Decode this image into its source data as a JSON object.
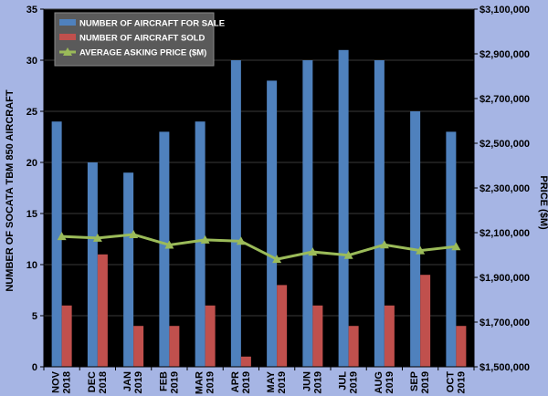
{
  "chart_data": {
    "type": "bar",
    "categories": [
      [
        "NOV",
        "2018"
      ],
      [
        "DEC",
        "2018"
      ],
      [
        "JAN",
        "2019"
      ],
      [
        "FEB",
        "2019"
      ],
      [
        "MAR",
        "2019"
      ],
      [
        "APR",
        "2019"
      ],
      [
        "MAY",
        "2019"
      ],
      [
        "JUN",
        "2019"
      ],
      [
        "JUL",
        "2019"
      ],
      [
        "AUG",
        "2019"
      ],
      [
        "SEP",
        "2019"
      ],
      [
        "OCT",
        "2019"
      ]
    ],
    "series": [
      {
        "name": "NUMBER OF AIRCRAFT FOR SALE",
        "type": "bar",
        "axis": "left",
        "color": "#4f81bd",
        "values": [
          24,
          20,
          19,
          23,
          24,
          30,
          28,
          30,
          31,
          30,
          25,
          23
        ]
      },
      {
        "name": "NUMBER OF AIRCRAFT SOLD",
        "type": "bar",
        "axis": "left",
        "color": "#c0504d",
        "values": [
          6,
          11,
          4,
          4,
          6,
          1,
          8,
          6,
          4,
          6,
          9,
          4
        ]
      },
      {
        "name": "AVERAGE ASKING PRICE ($M)",
        "type": "line",
        "marker": "triangle",
        "axis": "right",
        "color": "#9bbb59",
        "values": [
          2083000,
          2076000,
          2092000,
          2045000,
          2068000,
          2062000,
          1981000,
          2014000,
          1999000,
          2046000,
          2020000,
          2038000
        ]
      }
    ],
    "ylabel": "NUMBER OF SOCATA TBM 850 AIRCRAFT",
    "ylim": [
      0,
      35
    ],
    "yticks": [
      0,
      5,
      10,
      15,
      20,
      25,
      30,
      35
    ],
    "y2label": "PRICE ($M)",
    "y2lim": [
      1500000,
      3100000
    ],
    "y2ticks": [
      {
        "value": 1500000,
        "label": "$1,500,000"
      },
      {
        "value": 1700000,
        "label": "$1,700,000"
      },
      {
        "value": 1900000,
        "label": "$1,900,000"
      },
      {
        "value": 2100000,
        "label": "$2,100,000"
      },
      {
        "value": 2300000,
        "label": "$2,300,000"
      },
      {
        "value": 2500000,
        "label": "$2,500,000"
      },
      {
        "value": 2700000,
        "label": "$2,700,000"
      },
      {
        "value": 2900000,
        "label": "$2,900,000"
      },
      {
        "value": 3100000,
        "label": "$3,100,000"
      }
    ],
    "grid": true,
    "legend_position": "top-left",
    "plot_background": "#000000",
    "gridline_color": "#3a3a3a",
    "page_background": "#a6b5e4"
  }
}
